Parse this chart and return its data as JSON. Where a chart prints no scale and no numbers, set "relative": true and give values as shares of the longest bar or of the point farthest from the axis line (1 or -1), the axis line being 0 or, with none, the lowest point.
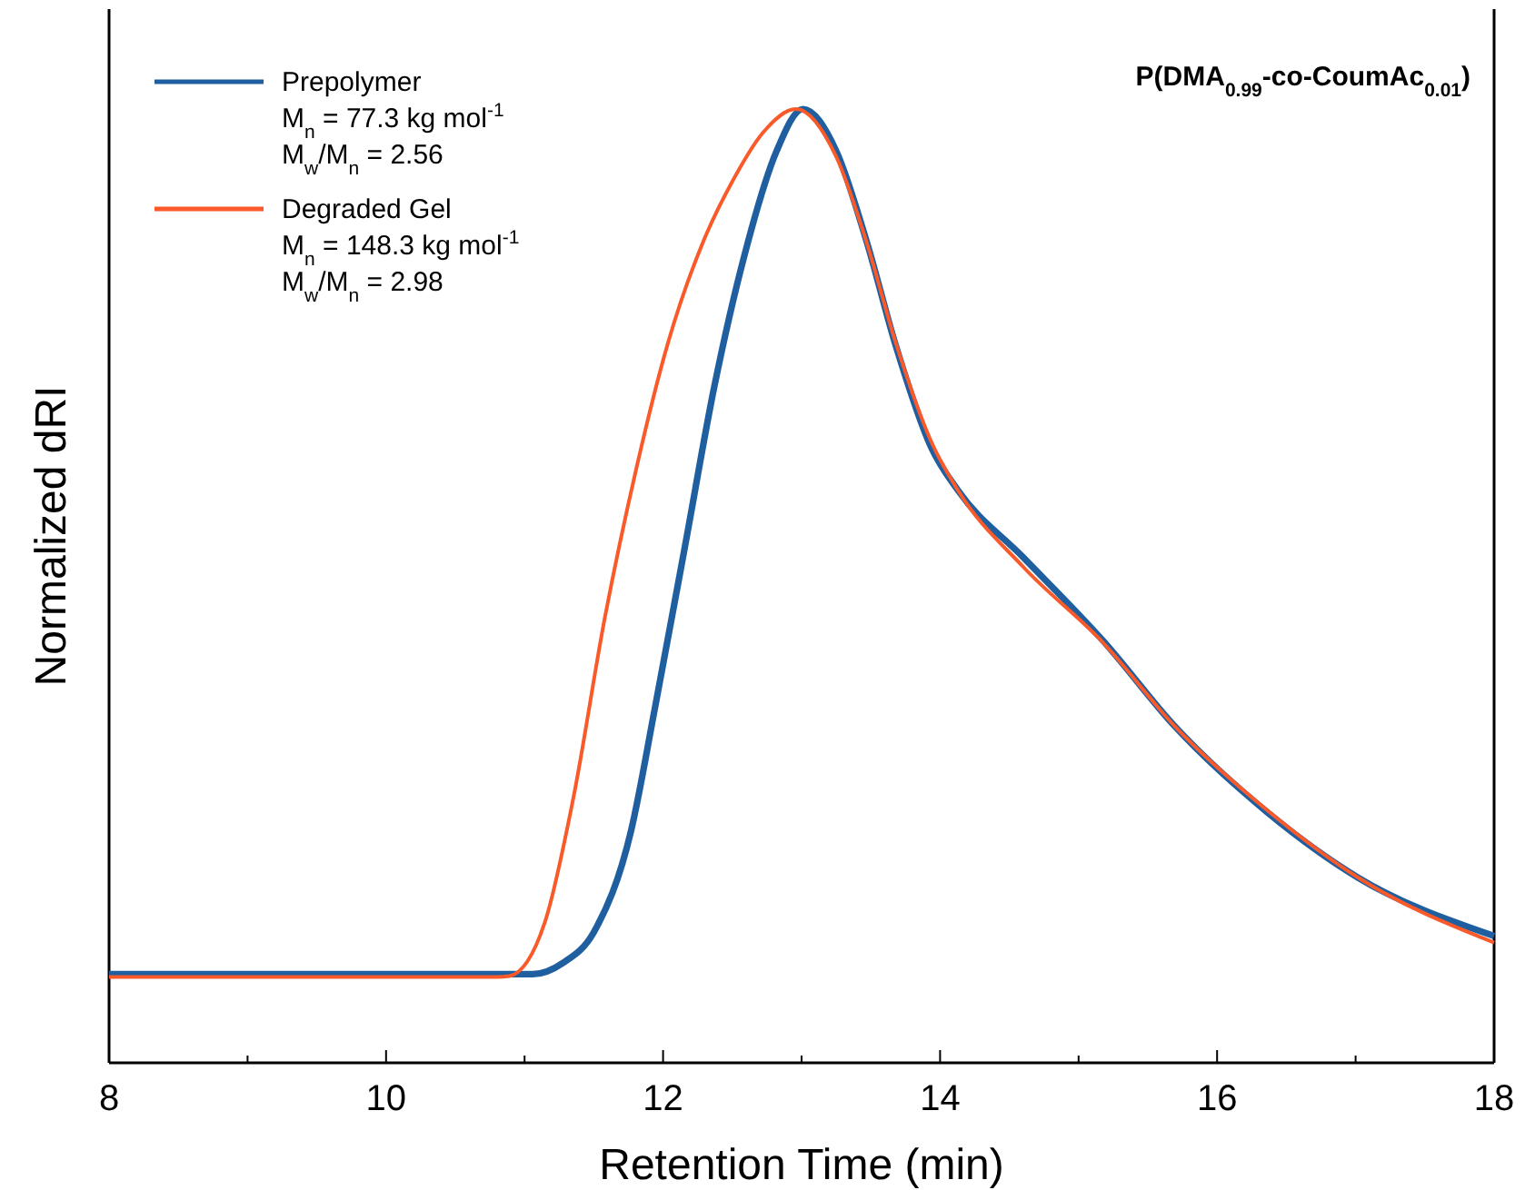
{
  "chart_data": {
    "type": "line",
    "title": "P(DMA$_{0.99}$-co-CoumAc$_{0.01}$)",
    "xlabel": "Retention Time (min)",
    "ylabel": "Normalized dRI",
    "relative": true,
    "xlim": [
      8,
      18
    ],
    "xticks": [
      8,
      {
        "value": 9,
        "label": null
      },
      10,
      {
        "value": 11,
        "label": null
      },
      12,
      {
        "value": 13,
        "label": null
      },
      14,
      {
        "value": 15,
        "label": null
      },
      16,
      {
        "value": 17,
        "label": null
      },
      18
    ],
    "legend": "top left",
    "grid": false,
    "marker": "none",
    "line_style": "solid",
    "annotations": [
      "M$_{n}$ = 77.3 kg mol$^{-1}$",
      "M$_{w}$/M$_{n}$ = 2.56",
      "M$_{n}$ = 148.3 kg mol$^{-1}$",
      "M$_{w}$/M$_{n}$ = 2.98"
    ],
    "series": [
      {
        "name": "Prepolymer",
        "color": "#1f5fa0",
        "x": [
          8,
          9,
          10,
          10.8,
          11.06,
          11.28,
          11.5,
          11.77,
          11.94,
          12.16,
          12.37,
          12.59,
          12.82,
          13.01,
          13.25,
          13.47,
          13.68,
          13.94,
          14.13,
          14.6,
          15.18,
          15.7,
          16.36,
          17.02,
          18
        ],
        "values": [
          0.093,
          0.093,
          0.093,
          0.093,
          0.093,
          0.105,
          0.137,
          0.244,
          0.371,
          0.543,
          0.709,
          0.848,
          0.956,
          1,
          0.956,
          0.861,
          0.752,
          0.644,
          0.6,
          0.53,
          0.442,
          0.352,
          0.263,
          0.194,
          0.133
        ]
      },
      {
        "name": "Degraded Gel",
        "color": "#fa5a2a",
        "x": [
          8,
          9,
          10,
          10.8,
          10.89,
          11.15,
          11.35,
          11.58,
          11.81,
          12.03,
          12.29,
          12.5,
          12.72,
          12.96,
          13.25,
          13.47,
          13.68,
          13.94,
          14.13,
          14.6,
          15.18,
          15.7,
          16.36,
          17.02,
          18
        ],
        "values": [
          0.09,
          0.09,
          0.09,
          0.09,
          0.091,
          0.149,
          0.276,
          0.467,
          0.625,
          0.752,
          0.861,
          0.924,
          0.975,
          1,
          0.95,
          0.86,
          0.755,
          0.65,
          0.6,
          0.52,
          0.44,
          0.352,
          0.265,
          0.194,
          0.126
        ]
      }
    ]
  }
}
